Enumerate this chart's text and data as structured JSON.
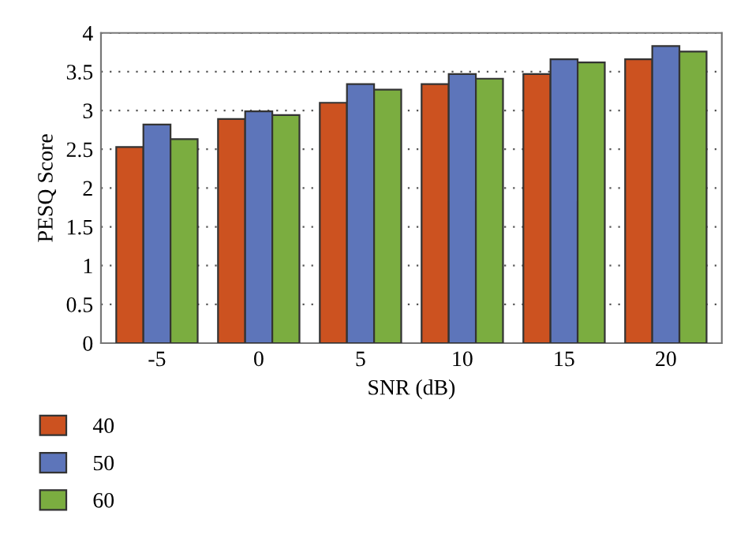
{
  "chart_data": {
    "type": "bar",
    "xlabel": "SNR (dB)",
    "ylabel": "PESQ Score",
    "categories": [
      "-5",
      "0",
      "5",
      "10",
      "15",
      "20"
    ],
    "series": [
      {
        "name": "40",
        "color": "#cc5220",
        "values": [
          2.53,
          2.89,
          3.1,
          3.34,
          3.47,
          3.66
        ]
      },
      {
        "name": "50",
        "color": "#5d75ba",
        "values": [
          2.82,
          2.99,
          3.34,
          3.47,
          3.66,
          3.83
        ]
      },
      {
        "name": "60",
        "color": "#7bad40",
        "values": [
          2.63,
          2.94,
          3.27,
          3.41,
          3.62,
          3.76
        ]
      }
    ],
    "ylim": [
      0,
      4
    ],
    "yticks": [
      0,
      0.5,
      1,
      1.5,
      2,
      2.5,
      3,
      3.5,
      4
    ],
    "grid": "y",
    "legend": "bottom left"
  }
}
